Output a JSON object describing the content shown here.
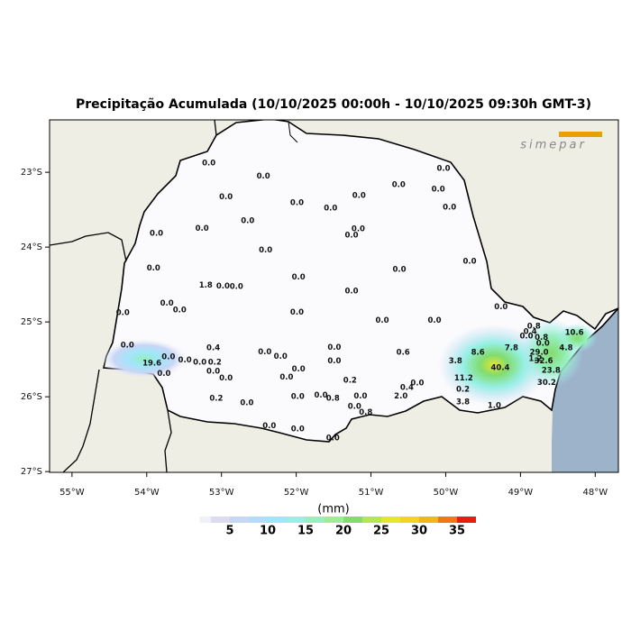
{
  "title": "Precipitação Acumulada (10/10/2025 00:00h - 10/10/2025 09:30h GMT-3)",
  "logo": "simepar",
  "map": {
    "xlim": [
      -55.3,
      -47.69
    ],
    "ylim": [
      -27.01,
      -22.3
    ],
    "xticks": [
      {
        "value": -55,
        "label": "55°W"
      },
      {
        "value": -54,
        "label": "54°W"
      },
      {
        "value": -53,
        "label": "53°W"
      },
      {
        "value": -52,
        "label": "52°W"
      },
      {
        "value": -51,
        "label": "51°W"
      },
      {
        "value": -50,
        "label": "50°W"
      },
      {
        "value": -49,
        "label": "49°W"
      },
      {
        "value": -48,
        "label": "48°W"
      }
    ],
    "yticks": [
      {
        "value": -23,
        "label": "23°S"
      },
      {
        "value": -24,
        "label": "24°S"
      },
      {
        "value": -25,
        "label": "25°S"
      },
      {
        "value": -26,
        "label": "26°S"
      },
      {
        "value": -27,
        "label": "27°S"
      }
    ],
    "stations": [
      {
        "lon": -53.17,
        "lat": -22.88,
        "value": 0,
        "label": "0.0"
      },
      {
        "lon": -52.44,
        "lat": -23.05,
        "value": 0,
        "label": "0.0"
      },
      {
        "lon": -52.94,
        "lat": -23.33,
        "value": 0,
        "label": "0.0"
      },
      {
        "lon": -51.99,
        "lat": -23.41,
        "value": 0,
        "label": "0.0"
      },
      {
        "lon": -51.54,
        "lat": -23.48,
        "value": 0,
        "label": "0.0"
      },
      {
        "lon": -51.16,
        "lat": -23.31,
        "value": 0,
        "label": "0.0"
      },
      {
        "lon": -50.63,
        "lat": -23.17,
        "value": 0,
        "label": "0.0"
      },
      {
        "lon": -50.1,
        "lat": -23.23,
        "value": 0,
        "label": "0.0"
      },
      {
        "lon": -50.03,
        "lat": -22.95,
        "value": 0,
        "label": "0.0"
      },
      {
        "lon": -49.95,
        "lat": -23.47,
        "value": 0,
        "label": "0.0"
      },
      {
        "lon": -52.65,
        "lat": -23.65,
        "value": 0,
        "label": "0.0"
      },
      {
        "lon": -53.26,
        "lat": -23.75,
        "value": 0,
        "label": "0.0"
      },
      {
        "lon": -53.87,
        "lat": -23.82,
        "value": 0,
        "label": "0.0"
      },
      {
        "lon": -51.17,
        "lat": -23.76,
        "value": 0,
        "label": "0.0"
      },
      {
        "lon": -51.26,
        "lat": -23.84,
        "value": 0,
        "label": "0.0"
      },
      {
        "lon": -52.41,
        "lat": -24.04,
        "value": 0,
        "label": "0.0"
      },
      {
        "lon": -49.68,
        "lat": -24.19,
        "value": 0,
        "label": "0.0"
      },
      {
        "lon": -53.91,
        "lat": -24.28,
        "value": 0,
        "label": "0.0"
      },
      {
        "lon": -50.62,
        "lat": -24.3,
        "value": 0,
        "label": "0.0"
      },
      {
        "lon": -51.97,
        "lat": -24.4,
        "value": 0,
        "label": "0.0"
      },
      {
        "lon": -53.21,
        "lat": -24.51,
        "value": 1.8,
        "label": "1.8"
      },
      {
        "lon": -52.98,
        "lat": -24.52,
        "value": 0,
        "label": "0.0"
      },
      {
        "lon": -52.8,
        "lat": -24.53,
        "value": 0,
        "label": "0.0"
      },
      {
        "lon": -51.26,
        "lat": -24.59,
        "value": 0,
        "label": "0.0"
      },
      {
        "lon": -53.73,
        "lat": -24.75,
        "value": 0,
        "label": "0.0"
      },
      {
        "lon": -53.56,
        "lat": -24.84,
        "value": 0,
        "label": "0.0"
      },
      {
        "lon": -54.32,
        "lat": -24.88,
        "value": 0,
        "label": "0.0"
      },
      {
        "lon": -51.99,
        "lat": -24.87,
        "value": 0,
        "label": "0.0"
      },
      {
        "lon": -49.26,
        "lat": -24.8,
        "value": 0,
        "label": "0.0"
      },
      {
        "lon": -50.85,
        "lat": -24.98,
        "value": 0,
        "label": "0.0"
      },
      {
        "lon": -50.15,
        "lat": -24.98,
        "value": 0,
        "label": "0.0"
      },
      {
        "lon": -54.26,
        "lat": -25.31,
        "value": 0,
        "label": "0.0"
      },
      {
        "lon": -53.11,
        "lat": -25.35,
        "value": 0.4,
        "label": "0.4"
      },
      {
        "lon": -52.42,
        "lat": -25.4,
        "value": 0,
        "label": "0.0"
      },
      {
        "lon": -52.21,
        "lat": -25.46,
        "value": 0,
        "label": "0.0"
      },
      {
        "lon": -51.49,
        "lat": -25.34,
        "value": 0,
        "label": "0.0"
      },
      {
        "lon": -51.49,
        "lat": -25.52,
        "value": 0,
        "label": "0.0"
      },
      {
        "lon": -50.57,
        "lat": -25.41,
        "value": 0.6,
        "label": "0.6"
      },
      {
        "lon": -49.87,
        "lat": -25.52,
        "value": 3.8,
        "label": "3.8"
      },
      {
        "lon": -49.57,
        "lat": -25.41,
        "value": 8.6,
        "label": "8.6"
      },
      {
        "lon": -49.12,
        "lat": -25.35,
        "value": 7.8,
        "label": "7.8"
      },
      {
        "lon": -53.71,
        "lat": -25.47,
        "value": 0,
        "label": "0.0"
      },
      {
        "lon": -53.93,
        "lat": -25.55,
        "value": 19.6,
        "label": "19.6"
      },
      {
        "lon": -53.49,
        "lat": -25.51,
        "value": 0,
        "label": "0.0"
      },
      {
        "lon": -53.29,
        "lat": -25.54,
        "value": 0,
        "label": "0.0"
      },
      {
        "lon": -53.09,
        "lat": -25.54,
        "value": 0.2,
        "label": "0.2"
      },
      {
        "lon": -53.77,
        "lat": -25.69,
        "value": 0,
        "label": "0.0"
      },
      {
        "lon": -53.11,
        "lat": -25.66,
        "value": 0,
        "label": "0.0"
      },
      {
        "lon": -51.97,
        "lat": -25.63,
        "value": 0,
        "label": "0.0"
      },
      {
        "lon": -52.13,
        "lat": -25.74,
        "value": 0,
        "label": "0.0"
      },
      {
        "lon": -52.94,
        "lat": -25.75,
        "value": 0,
        "label": "0.0"
      },
      {
        "lon": -51.28,
        "lat": -25.78,
        "value": 0.2,
        "label": "0.2"
      },
      {
        "lon": -49.76,
        "lat": -25.75,
        "value": 11.2,
        "label": "11.2"
      },
      {
        "lon": -49.27,
        "lat": -25.61,
        "value": 40.4,
        "label": "40.4"
      },
      {
        "lon": -49.77,
        "lat": -25.9,
        "value": 0.2,
        "label": "0.2"
      },
      {
        "lon": -50.38,
        "lat": -25.82,
        "value": 0,
        "label": "0.0"
      },
      {
        "lon": -50.52,
        "lat": -25.88,
        "value": 0.4,
        "label": "0.4"
      },
      {
        "lon": -51.98,
        "lat": -26.0,
        "value": 0,
        "label": "0.0"
      },
      {
        "lon": -51.67,
        "lat": -25.98,
        "value": 0,
        "label": "0.0"
      },
      {
        "lon": -51.51,
        "lat": -26.02,
        "value": 0.8,
        "label": "0.8"
      },
      {
        "lon": -51.14,
        "lat": -25.99,
        "value": 0,
        "label": "0.0"
      },
      {
        "lon": -50.6,
        "lat": -25.99,
        "value": 2.0,
        "label": "2.0"
      },
      {
        "lon": -53.07,
        "lat": -26.02,
        "value": 0.2,
        "label": "0.2"
      },
      {
        "lon": -52.66,
        "lat": -26.08,
        "value": 0,
        "label": "0.0"
      },
      {
        "lon": -51.22,
        "lat": -26.13,
        "value": 0,
        "label": "0.0"
      },
      {
        "lon": -51.07,
        "lat": -26.21,
        "value": 0.8,
        "label": "0.8"
      },
      {
        "lon": -49.77,
        "lat": -26.07,
        "value": 3.8,
        "label": "3.8"
      },
      {
        "lon": -49.35,
        "lat": -26.12,
        "value": 1.0,
        "label": "1.0"
      },
      {
        "lon": -51.98,
        "lat": -26.43,
        "value": 0,
        "label": "0.0"
      },
      {
        "lon": -52.36,
        "lat": -26.39,
        "value": 0,
        "label": "0.0"
      },
      {
        "lon": -51.51,
        "lat": -26.55,
        "value": 0,
        "label": "0.0"
      },
      {
        "lon": -48.82,
        "lat": -25.06,
        "value": 0.8,
        "label": "0.8"
      },
      {
        "lon": -48.87,
        "lat": -25.13,
        "value": 0.4,
        "label": "0.4"
      },
      {
        "lon": -48.92,
        "lat": -25.19,
        "value": 0,
        "label": "0.0"
      },
      {
        "lon": -48.72,
        "lat": -25.21,
        "value": 0.8,
        "label": "0.8"
      },
      {
        "lon": -48.7,
        "lat": -25.29,
        "value": 0,
        "label": "0.0"
      },
      {
        "lon": -48.28,
        "lat": -25.14,
        "value": 10.6,
        "label": "10.6"
      },
      {
        "lon": -48.39,
        "lat": -25.35,
        "value": 4.8,
        "label": "4.8"
      },
      {
        "lon": -48.75,
        "lat": -25.41,
        "value": 29,
        "label": "29.0"
      },
      {
        "lon": -48.8,
        "lat": -25.49,
        "value": 1.2,
        "label": "1.2"
      },
      {
        "lon": -48.69,
        "lat": -25.52,
        "value": 32.6,
        "label": "32.6"
      },
      {
        "lon": -48.59,
        "lat": -25.65,
        "value": 23.8,
        "label": "23.8"
      },
      {
        "lon": -48.65,
        "lat": -25.81,
        "value": 30.2,
        "label": "30.2"
      }
    ]
  },
  "colorbar": {
    "label": "(mm)",
    "levels": [
      0,
      1,
      2.5,
      5,
      7.5,
      10,
      12.5,
      15,
      17.5,
      20,
      22.5,
      25,
      27.5,
      30,
      32.5,
      35,
      37.5
    ],
    "colors": [
      "#ffffff",
      "#f0f0f8",
      "#dcdcf0",
      "#c8d6f5",
      "#b4dcfa",
      "#a0e6fa",
      "#96f0e6",
      "#96f0be",
      "#a0eb96",
      "#82dc6e",
      "#b4e650",
      "#e6e632",
      "#f5d228",
      "#f5b41e",
      "#f07814",
      "#e61e0a"
    ],
    "ticks": [
      5,
      10,
      15,
      20,
      25,
      30,
      35
    ]
  }
}
